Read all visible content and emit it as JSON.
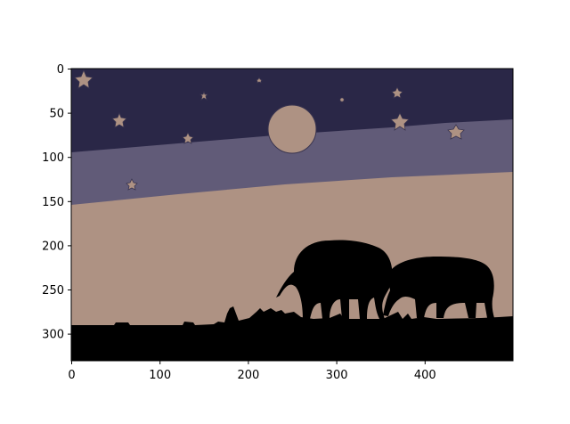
{
  "image": {
    "description_free": true,
    "colors": {
      "sky_top": "#2a2747",
      "sky_band": "#615b78",
      "ground": "#ae9283",
      "moon": "#ae9283",
      "stars": "#ae9283",
      "silhouette": "#000000",
      "axes": "#000000"
    }
  },
  "axes": {
    "xlim": [
      0,
      500
    ],
    "ylim": [
      330,
      0
    ],
    "x_ticks": [
      "0",
      "100",
      "200",
      "300",
      "400"
    ],
    "y_ticks": [
      "0",
      "50",
      "100",
      "150",
      "200",
      "250",
      "300"
    ]
  }
}
